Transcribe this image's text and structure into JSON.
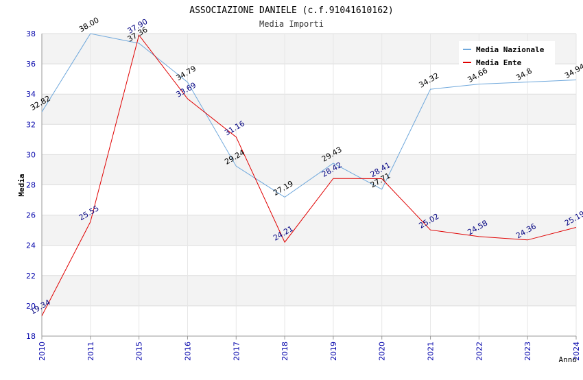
{
  "chart_data": {
    "type": "line",
    "title": "ASSOCIAZIONE DANIELE (c.f.91041610162)",
    "subtitle": "Media Importi",
    "xlabel": "Anno",
    "ylabel": "Media",
    "ylim": [
      18,
      38
    ],
    "yticks": [
      18,
      20,
      22,
      24,
      26,
      28,
      30,
      32,
      34,
      36,
      38
    ],
    "categories": [
      "2010",
      "2011",
      "2015",
      "2016",
      "2017",
      "2018",
      "2019",
      "2020",
      "2021",
      "2022",
      "2023",
      "2024"
    ],
    "grid": true,
    "legend": "top-right",
    "series": [
      {
        "name": "Media Nazionale",
        "color": "#6fa8dc",
        "label_color": "#000000",
        "values": [
          32.82,
          38.0,
          37.36,
          34.79,
          29.24,
          27.19,
          29.43,
          27.71,
          34.32,
          34.66,
          34.8,
          34.94
        ],
        "labels": [
          "32.82",
          "38.00",
          "37.36",
          "34.79",
          "29.24",
          "27.19",
          "29.43",
          "27.71",
          "34.32",
          "34.66",
          "34.8",
          "34.94"
        ]
      },
      {
        "name": "Media Ente",
        "color": "#e00000",
        "label_color": "#000080",
        "values": [
          19.34,
          25.55,
          37.9,
          33.69,
          31.16,
          24.21,
          28.42,
          28.41,
          25.02,
          24.58,
          24.36,
          25.19
        ],
        "labels": [
          "19.34",
          "25.55",
          "37.90",
          "33.69",
          "31.16",
          "24.21",
          "28.42",
          "28.41",
          "25.02",
          "24.58",
          "24.36",
          "25.19"
        ]
      }
    ]
  }
}
